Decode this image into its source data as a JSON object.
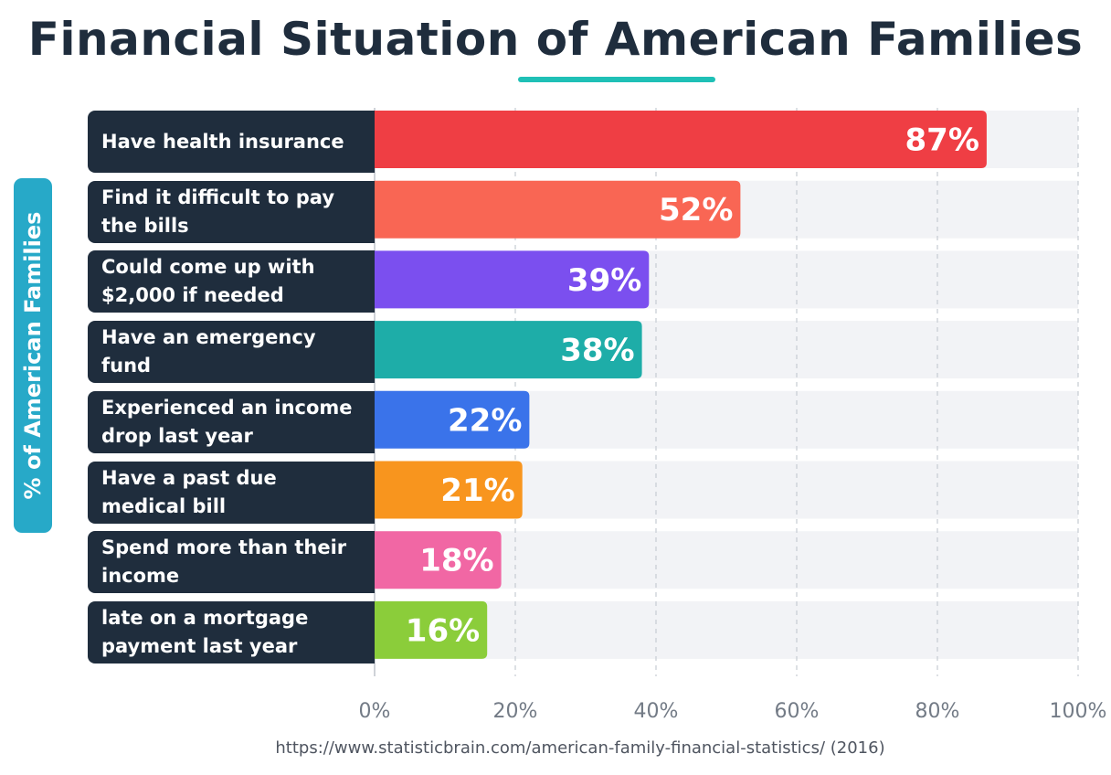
{
  "chart_data": {
    "type": "bar",
    "orientation": "horizontal",
    "title": "Financial Situation of American Families",
    "ylabel": "% of American Families",
    "xlabel": "",
    "xlim": [
      0,
      100
    ],
    "xticks": [
      0,
      20,
      40,
      60,
      80,
      100
    ],
    "tick_labels": [
      "0%",
      "20%",
      "40%",
      "60%",
      "80%",
      "100%"
    ],
    "grid": true,
    "legend": "none",
    "categories": [
      "Have health insurance",
      "Find it difficult to pay the bills",
      "Could come up with $2,000 if needed",
      "Have an emergency fund",
      "Experienced an income drop last year",
      "Have a past due medical bill",
      "Spend more than their income",
      "late on a mortgage payment last year"
    ],
    "values": [
      87,
      52,
      39,
      38,
      22,
      21,
      18,
      16
    ],
    "value_labels": [
      "87%",
      "52%",
      "39%",
      "38%",
      "22%",
      "21%",
      "18%",
      "16%"
    ],
    "colors": [
      "#ef3e44",
      "#f96654",
      "#7b4fef",
      "#1eada8",
      "#3a73ea",
      "#f8951e",
      "#f167a4",
      "#8bcd3a"
    ]
  },
  "source": "https://www.statisticbrain.com/american-family-financial-statistics/ (2016)"
}
